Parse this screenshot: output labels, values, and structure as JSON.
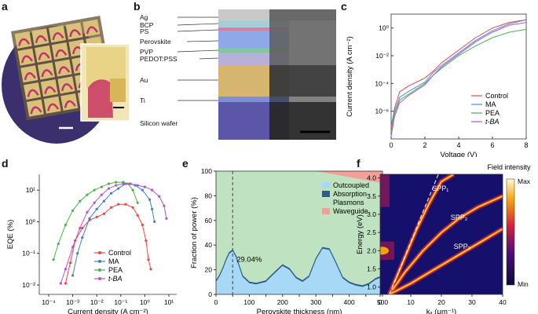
{
  "panels": {
    "a": "a",
    "b": "b",
    "c": "c",
    "d": "d",
    "e": "e",
    "f": "f"
  },
  "panel_b": {
    "layers": [
      "Ag",
      "BCP",
      "PS",
      "Perovskite",
      "PVP",
      "PEDOT:PSS",
      "Au",
      "Ti",
      "Silicon wafer"
    ],
    "colors": {
      "perovskite": "#8fa8e8",
      "au": "#d6b56e",
      "silicon": "#5b56a8",
      "ti": "#7d8fd6"
    }
  },
  "chart_data": [
    {
      "id": "c",
      "type": "line",
      "xlabel": "Voltage (V)",
      "ylabel": "Current density (A cm⁻²)",
      "xlim": [
        0,
        8
      ],
      "ylim_log10": [
        -8,
        1
      ],
      "xticks": [
        "0",
        "2",
        "4",
        "6",
        "8"
      ],
      "yticks": [
        "10⁰",
        "10⁻²",
        "10⁻⁴",
        "10⁻⁶"
      ],
      "series": [
        {
          "name": "Control",
          "color": "#e8464b",
          "x": [
            0,
            0.2,
            0.5,
            1,
            2,
            2.5,
            3,
            4,
            5,
            6,
            7,
            8
          ],
          "log10y": [
            -7.2,
            -5.8,
            -4.6,
            -4.2,
            -3.6,
            -3.1,
            -2.5,
            -1.6,
            -0.7,
            0.0,
            0.4,
            0.6
          ]
        },
        {
          "name": "MA",
          "color": "#4a8fd0",
          "x": [
            0,
            0.2,
            0.5,
            1,
            2,
            2.5,
            3,
            4,
            5,
            6,
            7,
            8
          ],
          "log10y": [
            -7.0,
            -6.0,
            -5.0,
            -4.6,
            -3.9,
            -3.2,
            -2.7,
            -1.8,
            -0.9,
            -0.2,
            0.3,
            0.6
          ]
        },
        {
          "name": "PEA",
          "color": "#4caf50",
          "x": [
            0,
            0.2,
            0.5,
            1,
            2,
            2.5,
            3,
            4,
            5,
            6,
            7,
            8
          ],
          "log10y": [
            -7.5,
            -6.2,
            -5.2,
            -4.8,
            -4.0,
            -3.4,
            -2.9,
            -2.0,
            -1.3,
            -0.7,
            -0.3,
            -0.1
          ]
        },
        {
          "name": "t-BA",
          "color": "#b455c9",
          "x": [
            0,
            0.2,
            0.5,
            1,
            2,
            2.5,
            3,
            4,
            5,
            6,
            7,
            8
          ],
          "log10y": [
            -7.8,
            -6.4,
            -5.4,
            -4.9,
            -4.1,
            -3.4,
            -2.8,
            -1.9,
            -1.0,
            -0.3,
            0.2,
            0.4
          ]
        }
      ]
    },
    {
      "id": "d",
      "type": "scatter",
      "xlabel": "Current density (A cm⁻²)",
      "ylabel": "EQE (%)",
      "xlim_log10": [
        -4,
        1
      ],
      "ylim_log10": [
        -2,
        1.5
      ],
      "xticks": [
        "10⁻⁴",
        "10⁻³",
        "10⁻²",
        "10⁻¹",
        "10⁰",
        "10¹"
      ],
      "yticks": [
        "10¹",
        "10⁰",
        "10⁻¹",
        "10⁻²"
      ],
      "series": [
        {
          "name": "Control",
          "color": "#e8464b",
          "log10x": [
            -3.3,
            -3.1,
            -2.9,
            -2.6,
            -2.3,
            -2.0,
            -1.7,
            -1.4,
            -1.1,
            -0.8,
            -0.5,
            -0.3,
            -0.1,
            0.05,
            0.15,
            0.25
          ],
          "log10y": [
            -1.95,
            -1.3,
            -0.6,
            -0.2,
            0.05,
            0.15,
            0.25,
            0.45,
            0.55,
            0.55,
            0.45,
            0.2,
            -0.1,
            -0.6,
            -1.2,
            -1.5
          ]
        },
        {
          "name": "MA",
          "color": "#3f7fc6",
          "log10x": [
            -3.0,
            -2.8,
            -2.6,
            -2.3,
            -2.0,
            -1.7,
            -1.4,
            -1.1,
            -0.8,
            -0.6,
            -0.4,
            -0.1,
            0.2,
            0.3,
            0.4
          ],
          "log10y": [
            -1.7,
            -1.0,
            -0.5,
            0.1,
            0.4,
            0.65,
            0.9,
            1.05,
            1.2,
            1.2,
            1.15,
            1.0,
            0.7,
            0.4,
            0.0
          ]
        },
        {
          "name": "PEA",
          "color": "#4caf50",
          "log10x": [
            -3.8,
            -3.6,
            -3.3,
            -3.0,
            -2.7,
            -2.4,
            -2.1,
            -1.8,
            -1.5,
            -1.2,
            -0.9,
            -0.7,
            -0.5,
            -0.3
          ],
          "log10y": [
            -1.2,
            -0.7,
            -0.1,
            0.35,
            0.65,
            0.85,
            1.0,
            1.1,
            1.2,
            1.25,
            1.25,
            1.2,
            1.0,
            0.6
          ]
        },
        {
          "name": "t-BA",
          "color": "#b455c9",
          "log10x": [
            -3.5,
            -3.3,
            -3.0,
            -2.7,
            -2.4,
            -2.1,
            -1.8,
            -1.5,
            -1.2,
            -0.9,
            -0.6,
            -0.3,
            0.0,
            0.3,
            0.6,
            0.8,
            0.9
          ],
          "log10y": [
            -1.95,
            -1.5,
            -0.8,
            -0.2,
            0.3,
            0.6,
            0.85,
            1.05,
            1.15,
            1.2,
            1.2,
            1.15,
            1.1,
            1.0,
            0.8,
            0.5,
            0.1
          ]
        }
      ]
    },
    {
      "id": "e",
      "type": "area",
      "xlabel": "Perovskite thickness (nm)",
      "ylabel": "Fraction of power (%)",
      "xlim": [
        0,
        500
      ],
      "ylim": [
        0,
        100
      ],
      "xticks": [
        0,
        50,
        100,
        150,
        200,
        250,
        300,
        350,
        400,
        450,
        500
      ],
      "yticks": [
        0,
        20,
        40,
        60,
        80,
        100
      ],
      "annotation": {
        "x": 50,
        "y": 29.04,
        "label": "29.04%"
      },
      "x": [
        0,
        10,
        20,
        30,
        40,
        50,
        60,
        70,
        80,
        100,
        120,
        150,
        180,
        200,
        220,
        240,
        260,
        280,
        300,
        320,
        340,
        360,
        380,
        400,
        420,
        440,
        460,
        480,
        500
      ],
      "outcoupled": [
        10,
        14,
        20,
        27,
        33,
        35,
        30,
        22,
        14,
        9,
        8,
        10,
        18,
        23,
        20,
        13,
        10,
        14,
        28,
        37,
        36,
        25,
        13,
        9,
        7,
        6,
        8,
        12,
        14
      ],
      "absorption_top": [
        11,
        15,
        21,
        28,
        34,
        36,
        31,
        23,
        15,
        10,
        9,
        11,
        19,
        24,
        21,
        14,
        11,
        15,
        29,
        38,
        37,
        26,
        14,
        10,
        8,
        7,
        9,
        13,
        15
      ],
      "waveguide_start": [
        100,
        100,
        100,
        100,
        100,
        100,
        100,
        100,
        100,
        100,
        100,
        100,
        100,
        100,
        100,
        100,
        100,
        100,
        100,
        99,
        98,
        97,
        96,
        95,
        94,
        93,
        92,
        91,
        90
      ],
      "legend": [
        {
          "name": "Outcoupled",
          "color": "#a7d8f5"
        },
        {
          "name": "Absorption",
          "color": "#2f5d8a"
        },
        {
          "name": "Plasmons",
          "color": "#bfe3c0"
        },
        {
          "name": "Waveguide",
          "color": "#f3a09a"
        }
      ]
    },
    {
      "id": "f",
      "type": "heatmap",
      "xlabel": "kₓ (μm⁻¹)",
      "ylabel": "Energy (eV)",
      "xlim": [
        0,
        40
      ],
      "ylim": [
        0.8,
        4.1
      ],
      "xticks": [
        "0",
        "10",
        "20",
        "30",
        "40"
      ],
      "yticks": [
        "1.0",
        "1.5",
        "2.0",
        "2.5",
        "3.0",
        "3.5",
        "4.0"
      ],
      "colorbar": {
        "title": "Field intensity",
        "max": "Max",
        "min": "Min"
      },
      "modes": [
        {
          "name": "SPP₁",
          "label_x": 17,
          "label_y": 3.65,
          "k": [
            3,
            8,
            12,
            16,
            20,
            24
          ],
          "e": [
            0.8,
            1.8,
            2.6,
            3.3,
            3.9,
            4.1
          ]
        },
        {
          "name": "SPP₂",
          "label_x": 23,
          "label_y": 2.85,
          "k": [
            3,
            8,
            14,
            20,
            26,
            32,
            40
          ],
          "e": [
            0.8,
            1.4,
            2.0,
            2.5,
            2.9,
            3.2,
            3.5
          ]
        },
        {
          "name": "SPP₃",
          "label_x": 24,
          "label_y": 2.05,
          "k": [
            3,
            10,
            18,
            26,
            34,
            40
          ],
          "e": [
            0.8,
            1.1,
            1.5,
            1.9,
            2.3,
            2.6
          ]
        }
      ]
    }
  ]
}
